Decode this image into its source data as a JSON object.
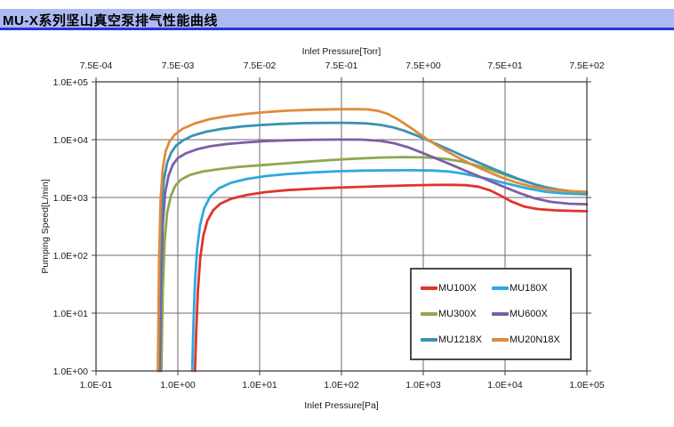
{
  "page": {
    "title": "MU-X系列坚山真空泵排气性能曲线",
    "title_bar_bg": "#ADB9F1",
    "title_underline_color": "#2A35D4"
  },
  "colors": {
    "background": "#ffffff",
    "plot_frame": "#3f3f3f",
    "gridline": "#6b6b6b",
    "tick_text": "#1a1a1a",
    "legend_border": "#4a4a4a"
  },
  "chart_data": {
    "type": "line",
    "x_scale": "log",
    "y_scale": "log",
    "grid": true,
    "legend_position": "inside-bottom-right",
    "x_axis_top": {
      "label": "Inlet Pressure[Torr]",
      "ticks": [
        "7.5E-04",
        "7.5E-03",
        "7.5E-02",
        "7.5E-01",
        "7.5E+00",
        "7.5E+01",
        "7.5E+02"
      ]
    },
    "x_axis_bottom": {
      "label": "Inlet Pressure[Pa]",
      "ticks": [
        "1.0E-01",
        "1.0E+00",
        "1.0E+01",
        "1.0E+02",
        "1.0E+03",
        "1.0E+04",
        "1.0E+05"
      ],
      "range_pa": [
        0.1,
        100000
      ]
    },
    "y_axis": {
      "label": "Pumping Speed[L/min]",
      "ticks": [
        "1.0E+05",
        "1.0E+04",
        "1.0E+03",
        "1.0E+02",
        "1.0E+01",
        "1.0E+00"
      ],
      "range_lmin": [
        1,
        100000
      ]
    },
    "series": [
      {
        "name": "MU100X",
        "color": "#E2332C",
        "points": [
          [
            1.62,
            1
          ],
          [
            1.68,
            5
          ],
          [
            1.76,
            25
          ],
          [
            1.88,
            90
          ],
          [
            2.05,
            220
          ],
          [
            2.3,
            400
          ],
          [
            2.7,
            600
          ],
          [
            3.3,
            780
          ],
          [
            4.5,
            950
          ],
          [
            7,
            1110
          ],
          [
            12,
            1240
          ],
          [
            22,
            1340
          ],
          [
            45,
            1420
          ],
          [
            90,
            1480
          ],
          [
            180,
            1530
          ],
          [
            350,
            1580
          ],
          [
            700,
            1620
          ],
          [
            1300,
            1650
          ],
          [
            2200,
            1655
          ],
          [
            3300,
            1630
          ],
          [
            4700,
            1540
          ],
          [
            6500,
            1330
          ],
          [
            8800,
            1080
          ],
          [
            12000,
            850
          ],
          [
            17000,
            700
          ],
          [
            25000,
            630
          ],
          [
            40000,
            600
          ],
          [
            70000,
            585
          ],
          [
            100000,
            580
          ]
        ]
      },
      {
        "name": "MU180X",
        "color": "#2EA8DF",
        "points": [
          [
            1.5,
            1
          ],
          [
            1.55,
            6
          ],
          [
            1.62,
            35
          ],
          [
            1.72,
            130
          ],
          [
            1.87,
            330
          ],
          [
            2.1,
            650
          ],
          [
            2.5,
            1050
          ],
          [
            3.2,
            1450
          ],
          [
            4.5,
            1800
          ],
          [
            7,
            2100
          ],
          [
            12,
            2350
          ],
          [
            22,
            2550
          ],
          [
            45,
            2720
          ],
          [
            90,
            2840
          ],
          [
            180,
            2910
          ],
          [
            350,
            2950
          ],
          [
            700,
            2960
          ],
          [
            1300,
            2930
          ],
          [
            2100,
            2800
          ],
          [
            3100,
            2580
          ],
          [
            4400,
            2330
          ],
          [
            6300,
            2080
          ],
          [
            9000,
            1840
          ],
          [
            13000,
            1620
          ],
          [
            19000,
            1430
          ],
          [
            30000,
            1270
          ],
          [
            50000,
            1180
          ],
          [
            100000,
            1130
          ]
        ]
      },
      {
        "name": "MU300X",
        "color": "#8CA84F",
        "points": [
          [
            0.63,
            1
          ],
          [
            0.655,
            25
          ],
          [
            0.69,
            180
          ],
          [
            0.74,
            550
          ],
          [
            0.82,
            1050
          ],
          [
            0.93,
            1600
          ],
          [
            1.1,
            2050
          ],
          [
            1.4,
            2450
          ],
          [
            2,
            2800
          ],
          [
            3.2,
            3100
          ],
          [
            5.5,
            3380
          ],
          [
            10,
            3600
          ],
          [
            19,
            3850
          ],
          [
            38,
            4150
          ],
          [
            75,
            4450
          ],
          [
            150,
            4700
          ],
          [
            300,
            4900
          ],
          [
            600,
            5000
          ],
          [
            1100,
            4930
          ],
          [
            1800,
            4680
          ],
          [
            2800,
            4250
          ],
          [
            4200,
            3700
          ],
          [
            6200,
            3130
          ],
          [
            9000,
            2600
          ],
          [
            13000,
            2170
          ],
          [
            19000,
            1830
          ],
          [
            28000,
            1560
          ],
          [
            45000,
            1360
          ],
          [
            75000,
            1260
          ],
          [
            100000,
            1230
          ]
        ]
      },
      {
        "name": "MU600X",
        "color": "#7B5EA7",
        "points": [
          [
            0.6,
            1
          ],
          [
            0.625,
            40
          ],
          [
            0.655,
            350
          ],
          [
            0.7,
            1200
          ],
          [
            0.77,
            2400
          ],
          [
            0.87,
            3700
          ],
          [
            1,
            4800
          ],
          [
            1.25,
            5800
          ],
          [
            1.7,
            6800
          ],
          [
            2.5,
            7700
          ],
          [
            4,
            8400
          ],
          [
            7,
            9000
          ],
          [
            12,
            9450
          ],
          [
            22,
            9750
          ],
          [
            45,
            9950
          ],
          [
            90,
            10050
          ],
          [
            180,
            10000
          ],
          [
            300,
            9500
          ],
          [
            450,
            8600
          ],
          [
            650,
            7400
          ],
          [
            950,
            6000
          ],
          [
            1400,
            4800
          ],
          [
            2100,
            3800
          ],
          [
            3100,
            3000
          ],
          [
            4600,
            2380
          ],
          [
            6800,
            1880
          ],
          [
            10000,
            1500
          ],
          [
            15000,
            1190
          ],
          [
            23000,
            970
          ],
          [
            36000,
            840
          ],
          [
            60000,
            780
          ],
          [
            100000,
            765
          ]
        ]
      },
      {
        "name": "MU1218X",
        "color": "#3C91B0",
        "points": [
          [
            0.58,
            1
          ],
          [
            0.6,
            60
          ],
          [
            0.63,
            600
          ],
          [
            0.675,
            2000
          ],
          [
            0.74,
            4000
          ],
          [
            0.83,
            6000
          ],
          [
            0.95,
            7900
          ],
          [
            1.15,
            9700
          ],
          [
            1.5,
            11700
          ],
          [
            2.2,
            13700
          ],
          [
            3.5,
            15400
          ],
          [
            6,
            16900
          ],
          [
            10,
            17900
          ],
          [
            18,
            18700
          ],
          [
            35,
            19300
          ],
          [
            70,
            19550
          ],
          [
            120,
            19550
          ],
          [
            200,
            19100
          ],
          [
            300,
            18000
          ],
          [
            430,
            16300
          ],
          [
            600,
            14100
          ],
          [
            830,
            11800
          ],
          [
            1150,
            9700
          ],
          [
            1600,
            7900
          ],
          [
            2300,
            6300
          ],
          [
            3300,
            5000
          ],
          [
            4800,
            4000
          ],
          [
            7000,
            3180
          ],
          [
            10000,
            2580
          ],
          [
            15000,
            2070
          ],
          [
            23000,
            1690
          ],
          [
            36000,
            1430
          ],
          [
            60000,
            1280
          ],
          [
            100000,
            1220
          ]
        ]
      },
      {
        "name": "MU20N18X",
        "color": "#E08A3C",
        "points": [
          [
            0.57,
            1
          ],
          [
            0.59,
            80
          ],
          [
            0.615,
            900
          ],
          [
            0.655,
            3200
          ],
          [
            0.71,
            6300
          ],
          [
            0.79,
            9300
          ],
          [
            0.92,
            12300
          ],
          [
            1.15,
            15500
          ],
          [
            1.6,
            19000
          ],
          [
            2.4,
            22500
          ],
          [
            4,
            25500
          ],
          [
            7,
            28000
          ],
          [
            12,
            30000
          ],
          [
            22,
            31700
          ],
          [
            45,
            33000
          ],
          [
            90,
            33600
          ],
          [
            150,
            33700
          ],
          [
            210,
            33300
          ],
          [
            280,
            31500
          ],
          [
            370,
            27800
          ],
          [
            480,
            22800
          ],
          [
            630,
            17800
          ],
          [
            830,
            13600
          ],
          [
            1100,
            10300
          ],
          [
            1500,
            7800
          ],
          [
            2100,
            5900
          ],
          [
            3000,
            4500
          ],
          [
            4300,
            3500
          ],
          [
            6300,
            2750
          ],
          [
            9200,
            2200
          ],
          [
            14000,
            1800
          ],
          [
            21000,
            1550
          ],
          [
            33000,
            1390
          ],
          [
            55000,
            1290
          ],
          [
            100000,
            1250
          ]
        ]
      }
    ]
  }
}
